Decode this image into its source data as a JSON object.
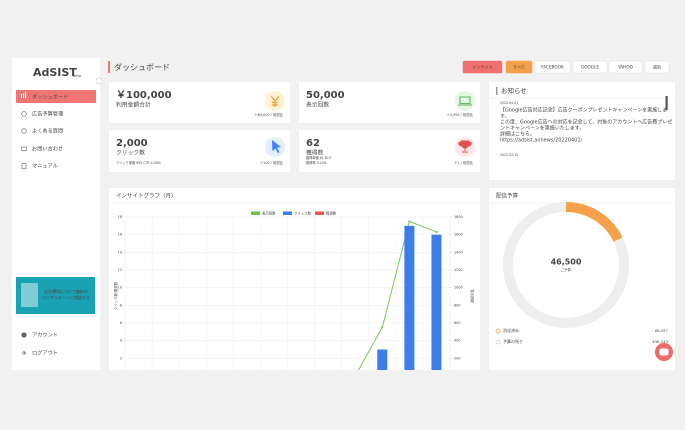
{
  "sidebar": {
    "logo": "AdSIST",
    "logo_badge": "beta",
    "menu": [
      "ダッシュボード",
      "広告予算管理",
      "よくある質問",
      "お問い合わせ",
      "マニュアル"
    ],
    "banner": [
      "広告運用について無料の",
      "コンサルタントに相談する"
    ],
    "footer": [
      "アカウント",
      "ログアウト"
    ]
  },
  "header": {
    "title": "ダッシュボード",
    "buttons": [
      "インサイト",
      "すべて",
      "FACEBOOK",
      "GOOGLE",
      "YAHOO",
      "週別"
    ]
  },
  "stats": [
    {
      "value": "￥100,000",
      "label": "利用金額合計",
      "note": "＋80,000 / 前週比",
      "sub": []
    },
    {
      "value": "50,000",
      "label": "表示回数",
      "note": "＋5,000 / 前週比",
      "sub": []
    },
    {
      "value": "2,000",
      "label": "クリック数",
      "note": "＋100 / 前週比",
      "sub": [
        "クリック単価 ¥50  CTR 4.00%"
      ]
    },
    {
      "value": "62",
      "label": "獲得数",
      "note": "＋2 / 前週比",
      "sub": [
        "獲得単価 ¥1,613",
        "獲得率 3.10%"
      ]
    }
  ],
  "notice": {
    "title": "お知らせ",
    "items": [
      {
        "date": "2022.04.01",
        "headline": [
          "【Google広告対応記念】広告クーポンプレゼントキャンペーンを実施しま",
          "す。"
        ],
        "body": [
          "この度、Google広告への対応を記念して、対象のアカウントへ広告費プレゼ",
          "ントキャンペーンを実施いたします。",
          "詳細はこちら。"
        ],
        "link": "https://adsist.ai/news/20220401/"
      },
      {
        "date": "2022.03.15",
        "headline": [],
        "body": [],
        "link": ""
      }
    ]
  },
  "chart_data": {
    "type": "bar",
    "title": "インサイトグラフ（月）",
    "categories": [
      null,
      null,
      null,
      null,
      null,
      null,
      null,
      null,
      null,
      null,
      null,
      null
    ],
    "series": [
      {
        "name": "表示回数",
        "color": "#6cc24a",
        "type": "line",
        "axis": "y2",
        "values": [
          0,
          0,
          0,
          0,
          0,
          0,
          0,
          0,
          0,
          550,
          1750,
          1630
        ]
      },
      {
        "name": "クリック数",
        "color": "#3b7ee8",
        "type": "bar",
        "values": [
          0,
          0,
          0,
          0,
          0,
          0,
          0,
          0,
          0,
          3,
          17,
          16
        ]
      },
      {
        "name": "獲得数",
        "color": "#ef5350",
        "type": "bar",
        "values": [
          0,
          0,
          0,
          0,
          0,
          0,
          0,
          0,
          0,
          0,
          0,
          0
        ]
      }
    ],
    "ylabel": "クリック数/獲得数",
    "y2label": "表示回数",
    "ylim": [
      0,
      18
    ],
    "yticks": [
      0,
      2,
      4,
      6,
      8,
      10,
      12,
      14,
      16,
      18
    ],
    "y2lim": [
      0,
      1800
    ],
    "y2ticks": [
      0,
      200,
      400,
      600,
      800,
      1000,
      1200,
      1400,
      1600,
      1800
    ],
    "grid": true,
    "legend": "top"
  },
  "budget": {
    "title": "配信予算",
    "total": "46,500",
    "caption": "ご予算",
    "items": [
      {
        "name": "消化済み",
        "value": 8257,
        "label": "¥8,257",
        "color": "#f5a04a"
      },
      {
        "name": "予算の残り",
        "value": 38243,
        "label": "¥38,243",
        "color": "#eeeeee"
      }
    ]
  }
}
